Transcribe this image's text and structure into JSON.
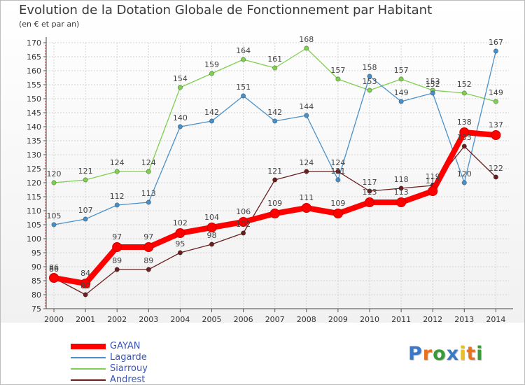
{
  "chart_data": {
    "type": "line",
    "title": "Evolution de la Dotation Globale de Fonctionnement par Habitant",
    "subtitle": "(en € et par an)",
    "x": [
      "2000",
      "2001",
      "2002",
      "2003",
      "2004",
      "2005",
      "2006",
      "2007",
      "2008",
      "2009",
      "2010",
      "2011",
      "2012",
      "2013",
      "2014"
    ],
    "ylim": [
      75,
      170
    ],
    "yticks": [
      75,
      80,
      85,
      90,
      95,
      100,
      105,
      110,
      115,
      120,
      125,
      130,
      135,
      140,
      145,
      150,
      155,
      160,
      165,
      170
    ],
    "grid": true,
    "legend_position": "bottom-left",
    "series": [
      {
        "name": "GAYAN",
        "color": "#ff0000",
        "values": [
          86,
          84,
          97,
          97,
          102,
          104,
          106,
          109,
          111,
          109,
          113,
          113,
          117,
          138,
          137
        ]
      },
      {
        "name": "Lagarde",
        "color": "#4a90c8",
        "values": [
          105,
          107,
          112,
          113,
          140,
          142,
          151,
          142,
          144,
          121,
          158,
          149,
          152,
          120,
          167
        ]
      },
      {
        "name": "Siarrouy",
        "color": "#80d050",
        "values": [
          120,
          121,
          124,
          124,
          154,
          159,
          164,
          161,
          168,
          157,
          153,
          157,
          153,
          152,
          149
        ]
      },
      {
        "name": "Andrest",
        "color": "#6b1e1e",
        "values": [
          86,
          80,
          89,
          89,
          95,
          98,
          102,
          121,
          124,
          124,
          117,
          118,
          119,
          133,
          122
        ]
      }
    ]
  },
  "logo": {
    "letters": [
      "P",
      "r",
      "o",
      "x",
      "i",
      "t",
      "i"
    ],
    "colors": [
      "#3a78c8",
      "#e8731e",
      "#3a9a3a",
      "#3a78c8",
      "#e8c020",
      "#e8731e",
      "#3a9a3a"
    ]
  }
}
